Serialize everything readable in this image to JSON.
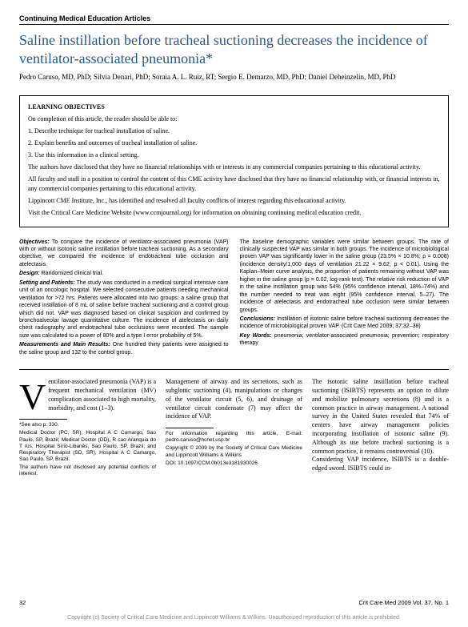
{
  "section_label": "Continuing Medical Education Articles",
  "title": "Saline instillation before tracheal suctioning decreases the incidence of ventilator-associated pneumonia*",
  "authors": "Pedro Caruso, MD, PhD; Silvia Denari, PhD; Soraia A. L. Ruiz, RT; Sergio E. Demarzo, MD, PhD; Daniel Deheinzelin, MD, PhD",
  "objectives": {
    "heading": "LEARNING OBJECTIVES",
    "intro": "On completion of this article, the reader should be able to:",
    "item1": "1. Describe technique for tracheal installation of saline.",
    "item2": "2. Explain benefits and outcomes of tracheal installation of saline.",
    "item3": "3. Use this information in a clinical setting.",
    "disclosure1": "The authors have disclosed that they have no financial relationships with or interests in any commercial companies pertaining to this educational activity.",
    "disclosure2": "All faculty and staff in a position to control the content of this CME activity have disclosed that they have no financial relationship with, or financial interests in, any commercial companies pertaining to this educational activity.",
    "disclosure3": "Lippincott CME Institute, Inc., has identified and resolved all faculty conflicts of interest regarding this educational activity.",
    "disclosure4": "Visit the Critical Care Medicine Website (www.ccmjournal.org) for information on obtaining continuing medical education credit."
  },
  "abstract": {
    "left": {
      "objectives_label": "Objectives:",
      "objectives": "To compare the incidence of ventilator-associated pneumonia (VAP) with or without isotonic saline instillation before tracheal suctioning. As a secondary objective, we compared the incidence of endotracheal tube occlusion and atelectasis.",
      "design_label": "Design:",
      "design": "Randomized clinical trial.",
      "setting_label": "Setting and Patients:",
      "setting": "The study was conducted in a medical surgical intensive care unit of an oncologic hospital. We selected consecutive patients needing mechanical ventilation for >72 hrs. Patients were allocated into two groups: a saline group that received instillation of 8 mL of saline before tracheal suctioning and a control group which did not. VAP was diagnosed based on clinical suspicion and confirmed by bronchoalveolar lavage quantitative culture. The incidence of atelectasis on daily chest radiography and endotracheal tube occlusions were recorded. The sample size was calculated to a power of 80% and a type I error probability of 5%.",
      "measurements_label": "Measurements and Main Results:",
      "measurements": "One hundred thirty patients were assigned to the saline group and 132 to the control group."
    },
    "right": {
      "p1": "The baseline demographic variables were similar between groups. The rate of clinically suspected VAP was similar in both groups. The incidence of microbiological proven VAP was significantly lower in the saline group (23.5% × 10.8%; p = 0.008) (incidence density/1,000 days of ventilation 21.22 × 9.62; p < 0.01). Using the Kaplan–Meier curve analysis, the proportion of patients remaining without VAP was higher in the saline group (p = 0.02, log-rank test). The relative risk reduction of VAP in the saline instillation group was 54% (95% confidence interval, 18%–74%) and the number needed to treat was eight (95% confidence interval, 5–27). The incidence of atelectasis and endotracheal tube occlusion were similar between groups.",
      "conclusions_label": "Conclusions:",
      "conclusions": "Instillation of isotonic saline before tracheal suctioning decreases the incidence of microbiological proven VAP. (Crit Care Med 2009; 37:32–38)",
      "keywords_label": "Key Words:",
      "keywords": "pneumonia; ventilator-associated pneumonia; prevention; respiratory therapy"
    }
  },
  "body": {
    "col1": {
      "dropcap": "V",
      "p1": "entilator-associated pneumonia (VAP) is a frequent mechanical ventilation (MV) complication associated to high mortality, morbidity, and cost (1–3)."
    },
    "col2": {
      "p1": "Management of airway and its secretions, such as subglottic suctioning (4), manipulations or changes of the ventilator circuit (5, 6), and drainage of ventilator circuit condensate (7) may affect the incidence of VAP."
    },
    "col3": {
      "p1": "The isotonic saline instillation before tracheal suctioning (ISIBTS) represents an option to dilute and mobilize pulmonary secretions (8) and is a common practice in airway management. A national survey in the United States revealed that 74% of centers have airway management policies incorporating instillation of isotonic saline (9). Although its use before tracheal suctioning is a common practice, it remains controversial (10).",
      "p2": "Considering VAP incidence, ISIBTS is a double-edged sword. ISIBTS could in-"
    }
  },
  "footnotes": {
    "see_also": "*See also p. 330.",
    "affil": "Medical Doctor (PC, SR), Hospital A C Camargo, Sao Paulo, SP, Brazil; Medical Doctor (DD), R cao Aranquia do T rus, Hospital Sírio-Libanês, Sao Paulo, SP, Brazil; and Respiratory Therapist (SD, SR), Hospital A C Camargo, Sao Paulo, SP, Brazil.",
    "conflict": "The authors have not disclosed any potential conflicts of interest.",
    "contact": "For information regarding this article, E-mail: pedro.caruso@hcnet.usp.br",
    "copyright": "Copyright © 2009 by the Society of Critical Care Medicine and Lippincott Williams & Wilkins",
    "doi": "DOI: 10.1097/CCM.0b013e3181930026"
  },
  "footer": {
    "page": "32",
    "journal": "Crit Care Med 2009 Vol. 37, No. 1"
  },
  "bottom_copyright": "Copyright (c) Society of Critical Care Medicine and Lippincott Williams & Wilkins. Unauthorized reproduction of this article is prohibited."
}
